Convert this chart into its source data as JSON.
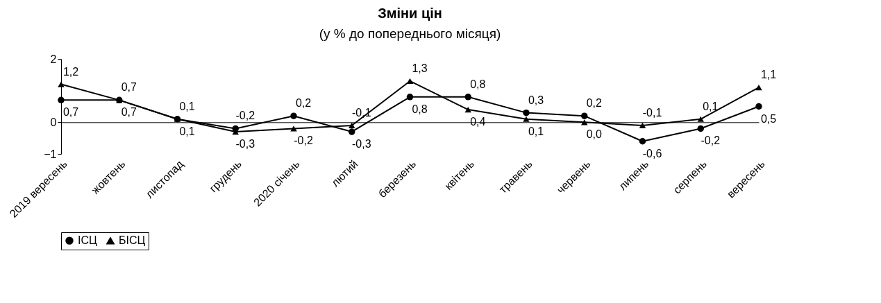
{
  "chart_data": {
    "type": "line",
    "title": "Зміни цін",
    "subtitle": "(у % до попереднього місяця)",
    "categories": [
      "2019 вересень",
      "жовтень",
      "листопад",
      "грудень",
      "2020 січень",
      "лютий",
      "березень",
      "квітень",
      "травень",
      "червень",
      "липень",
      "серпень",
      "вересень"
    ],
    "series": [
      {
        "name": "ІСЦ",
        "color": "#000000",
        "marker": "circle",
        "values": [
          0.7,
          0.7,
          0.1,
          -0.2,
          0.2,
          -0.3,
          0.8,
          0.8,
          0.3,
          0.2,
          -0.6,
          -0.2,
          0.5
        ],
        "value_labels": [
          "0,7",
          "0,7",
          "0,1",
          "-0,2",
          "0,2",
          "-0,3",
          "0,8",
          "0,8",
          "0,3",
          "0,2",
          "-0,6",
          "-0,2",
          "0,5"
        ]
      },
      {
        "name": "БІСЦ",
        "color": "#000000",
        "marker": "triangle",
        "values": [
          1.2,
          0.7,
          0.1,
          -0.3,
          -0.2,
          -0.1,
          1.3,
          0.4,
          0.1,
          0.0,
          -0.1,
          0.1,
          1.1
        ],
        "value_labels": [
          "1,2",
          "0,7",
          "0,1",
          "-0,3",
          "-0,2",
          "-0,1",
          "1,3",
          "0,4",
          "0,1",
          "0,0",
          "-0,1",
          "0,1",
          "1,1"
        ]
      }
    ],
    "ylim": [
      -1,
      2
    ],
    "yticks": [
      -1,
      0,
      2
    ],
    "legend": "bottom"
  }
}
